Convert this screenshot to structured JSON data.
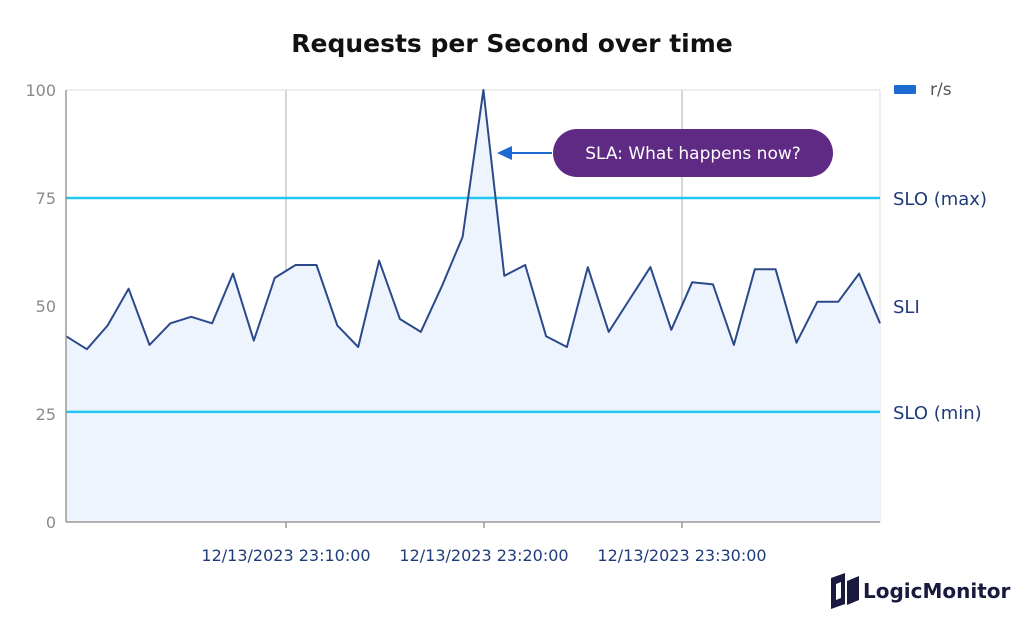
{
  "chart_data": {
    "type": "line",
    "title": "Requests per Second over time",
    "xlabel": "",
    "ylabel": "",
    "ylim": [
      0,
      100
    ],
    "yticks": [
      0,
      25,
      50,
      75,
      100
    ],
    "xticks": [
      "12/13/2023 23:10:00",
      "12/13/2023 23:20:00",
      "12/13/2023 23:30:00"
    ],
    "grid": true,
    "legend_position": "top-right",
    "series": [
      {
        "name": "r/s",
        "color": "#2b4a8b",
        "fill": "#eef4fd",
        "values": [
          43,
          40,
          45.5,
          54,
          41,
          46,
          47.5,
          46,
          57.5,
          42,
          56.5,
          59.5,
          59.5,
          45.5,
          40.5,
          60.5,
          47,
          44,
          54.5,
          66,
          100,
          57,
          59.5,
          43,
          40.5,
          59,
          44,
          51.5,
          59,
          44.5,
          55.5,
          55,
          41,
          58.5,
          58.5,
          41.5,
          51,
          51,
          57.5,
          46
        ]
      }
    ],
    "reference_lines": [
      {
        "label": "SLO (max)",
        "value": 75,
        "color": "#22c7f0"
      },
      {
        "label": "SLO (min)",
        "value": 25.5,
        "color": "#22c7f0"
      }
    ],
    "annotations": {
      "sli_label": "SLI",
      "callout": "SLA: What happens now?",
      "callout_color": "#5e2a84",
      "arrow_color": "#1c6bd1"
    }
  },
  "brand": {
    "name": "LogicMonitor",
    "icon": "logicmonitor-logo-icon",
    "color": "#1a1a3e"
  }
}
